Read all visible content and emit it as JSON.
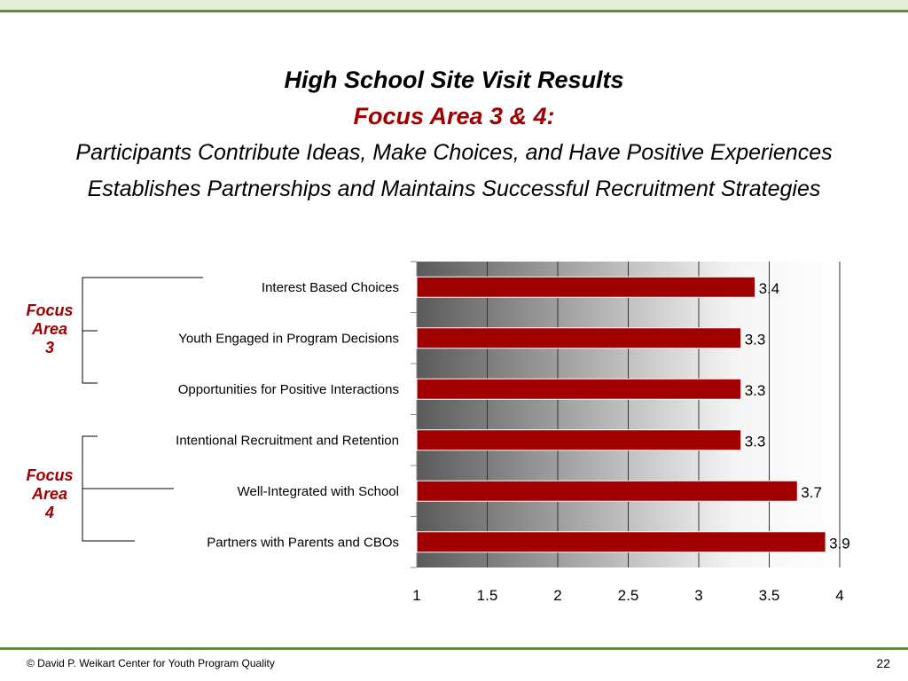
{
  "header": {
    "title": "High School Site Visit Results",
    "subtitle": "Focus Area 3 & 4:",
    "line1": "Participants Contribute Ideas, Make Choices, and Have Positive Experiences",
    "line2": "Establishes Partnerships and Maintains Successful Recruitment Strategies"
  },
  "groups": [
    {
      "label_lines": [
        "Focus",
        "Area",
        "3"
      ]
    },
    {
      "label_lines": [
        "Focus",
        "Area",
        "4"
      ]
    }
  ],
  "chart_data": {
    "type": "bar",
    "orientation": "horizontal",
    "categories": [
      "Interest Based Choices",
      "Youth Engaged in Program Decisions",
      "Opportunities for Positive Interactions",
      "Intentional Recruitment and Retention",
      "Well-Integrated with School",
      "Partners with Parents and CBOs"
    ],
    "values": [
      3.4,
      3.3,
      3.3,
      3.3,
      3.7,
      3.9
    ],
    "value_labels": [
      "3.4",
      "3.3",
      "3.3",
      "3.3",
      "3.7",
      "3.9"
    ],
    "xlim": [
      1,
      4
    ],
    "x_ticks": [
      "1",
      "1.5",
      "2",
      "2.5",
      "3",
      "3.5",
      "4"
    ],
    "bar_color": "#a00000",
    "grid": true
  },
  "footer": {
    "copyright": "© David P. Weikart Center for Youth Program Quality",
    "page_number": "22"
  }
}
